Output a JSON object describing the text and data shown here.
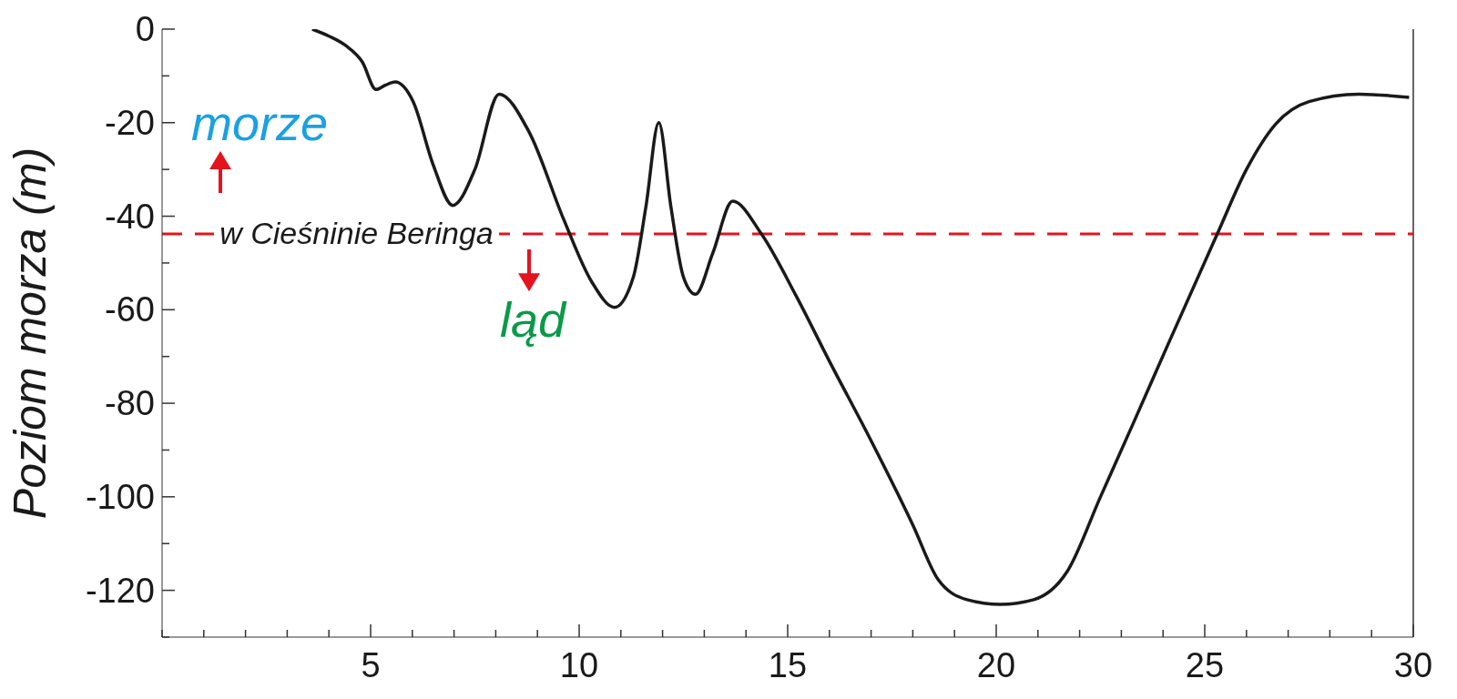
{
  "chart_data": {
    "type": "line",
    "ylabel": "Poziom morza (m)",
    "x": [
      3.6,
      4.0,
      4.4,
      4.8,
      5.13,
      5.35,
      5.59,
      6.02,
      6.5,
      6.97,
      7.5,
      8.08,
      8.8,
      9.63,
      10.3,
      10.85,
      11.3,
      11.6,
      11.91,
      12.2,
      12.5,
      12.79,
      13.2,
      13.68,
      14.37,
      15.2,
      16.0,
      17.0,
      18.0,
      18.6,
      19.3,
      20.1,
      20.9,
      21.7,
      22.5,
      23.3,
      24.1,
      25.3,
      26.0,
      26.7,
      27.5,
      28.7,
      29.9
    ],
    "series": [
      {
        "color": "#1a1a1a",
        "values": [
          0,
          -1.5,
          -3.5,
          -7,
          -12.9,
          -12,
          -11.3,
          -15.5,
          -29,
          -37.7,
          -30,
          -13.9,
          -22,
          -40.7,
          -54,
          -59.5,
          -53,
          -38,
          -20,
          -38,
          -53,
          -56.7,
          -48,
          -36.8,
          -43.8,
          -57,
          -71,
          -88,
          -106,
          -117.6,
          -122,
          -123,
          -122,
          -116,
          -100,
          -84,
          -67.8,
          -43.8,
          -30,
          -20.3,
          -15.5,
          -13.9,
          -14.6
        ]
      }
    ],
    "xlim": [
      0,
      30
    ],
    "xticks": [
      {
        "value": 0,
        "label": null
      },
      {
        "value": 1,
        "label": null
      },
      {
        "value": 2,
        "label": null
      },
      {
        "value": 3,
        "label": null
      },
      {
        "value": 4,
        "label": null
      },
      5,
      {
        "value": 6,
        "label": null
      },
      {
        "value": 7,
        "label": null
      },
      {
        "value": 8,
        "label": null
      },
      {
        "value": 9,
        "label": null
      },
      10,
      {
        "value": 11,
        "label": null
      },
      {
        "value": 12,
        "label": null
      },
      {
        "value": 13,
        "label": null
      },
      {
        "value": 14,
        "label": null
      },
      15,
      {
        "value": 16,
        "label": null
      },
      {
        "value": 17,
        "label": null
      },
      {
        "value": 18,
        "label": null
      },
      {
        "value": 19,
        "label": null
      },
      20,
      {
        "value": 21,
        "label": null
      },
      {
        "value": 22,
        "label": null
      },
      {
        "value": 23,
        "label": null
      },
      {
        "value": 24,
        "label": null
      },
      25,
      {
        "value": 26,
        "label": null
      },
      {
        "value": 27,
        "label": null
      },
      {
        "value": 28,
        "label": null
      },
      {
        "value": 29,
        "label": null
      },
      30
    ],
    "ylim": [
      -130,
      0
    ],
    "yticks": [
      {
        "value": -130,
        "label": null
      },
      -120,
      {
        "value": -110,
        "label": null
      },
      -100,
      {
        "value": -90,
        "label": null
      },
      -80,
      {
        "value": -70,
        "label": null
      },
      -60,
      {
        "value": -50,
        "label": null
      },
      -40,
      {
        "value": -30,
        "label": null
      },
      -20,
      {
        "value": -10,
        "label": null
      },
      0
    ],
    "ref_lines": [
      {
        "axis": "y",
        "value": -43.8,
        "label": "w Cieśninie Beringa",
        "color": "#e3141e",
        "line_style": "dashed"
      }
    ],
    "annotations": [
      "morze",
      "ląd"
    ],
    "marker": "none",
    "line_style": "solid"
  }
}
